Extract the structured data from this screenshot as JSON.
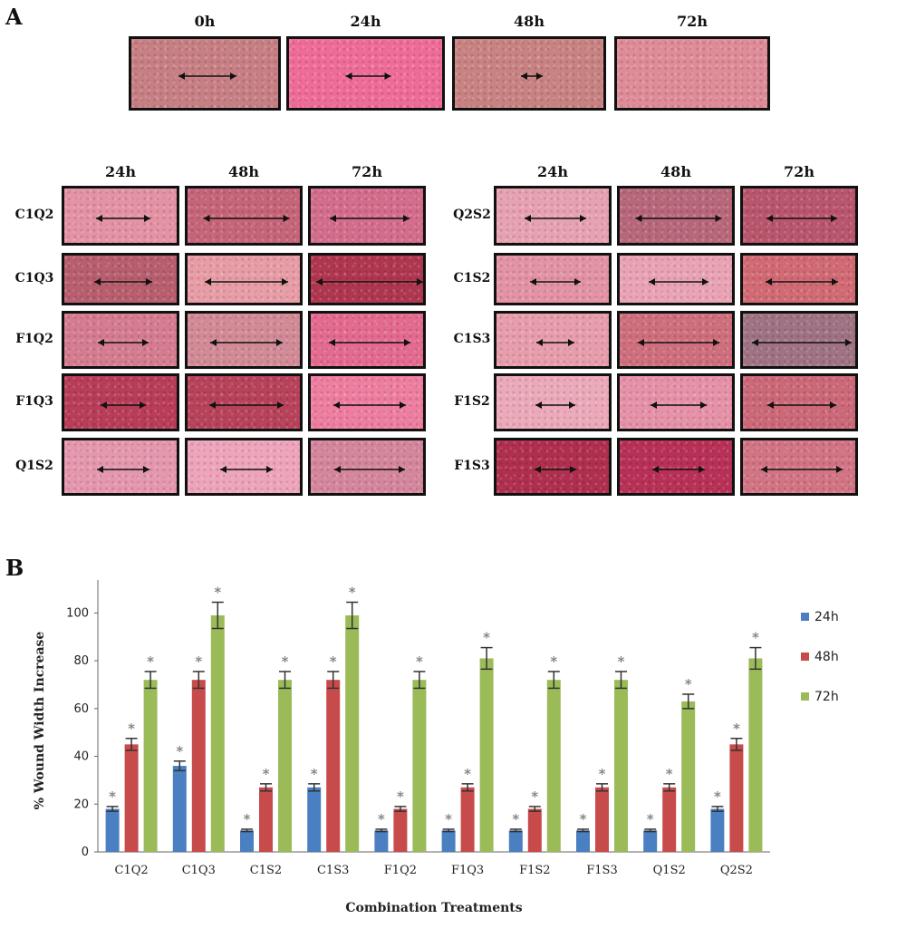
{
  "panelA": {
    "letter": "A",
    "top_row": {
      "timepoints": [
        "0h",
        "24h",
        "48h",
        "72h"
      ],
      "colors": [
        "#c77f84",
        "#f06c98",
        "#c98282",
        "#df8b98"
      ]
    },
    "left_grid": {
      "timepoints": [
        "24h",
        "48h",
        "72h"
      ],
      "rows": [
        {
          "label": "C1Q2",
          "colors": [
            "#e492a4",
            "#c66479",
            "#d46c8c"
          ]
        },
        {
          "label": "C1Q3",
          "colors": [
            "#b85e6e",
            "#e89ca6",
            "#b0364f"
          ]
        },
        {
          "label": "F1Q2",
          "colors": [
            "#d57c90",
            "#d28a96",
            "#e46a90"
          ]
        },
        {
          "label": "F1Q3",
          "colors": [
            "#b93c58",
            "#b8425a",
            "#ee7da0"
          ]
        },
        {
          "label": "Q1S2",
          "colors": [
            "#e597ae",
            "#eea4ba",
            "#d5869c"
          ]
        }
      ]
    },
    "right_grid": {
      "timepoints": [
        "24h",
        "48h",
        "72h"
      ],
      "rows": [
        {
          "label": "Q2S2",
          "colors": [
            "#e7a2b2",
            "#b8677a",
            "#b9556c"
          ]
        },
        {
          "label": "C1S2",
          "colors": [
            "#e393a3",
            "#e9a3b5",
            "#d26a74"
          ]
        },
        {
          "label": "C1S3",
          "colors": [
            "#e79dac",
            "#cf6e7c",
            "#9f7284"
          ]
        },
        {
          "label": "F1S2",
          "colors": [
            "#eca9ba",
            "#e691a8",
            "#cc6878"
          ]
        },
        {
          "label": "F1S3",
          "colors": [
            "#b02f4f",
            "#b93057",
            "#d27484"
          ]
        }
      ]
    }
  },
  "panelB": {
    "letter": "B"
  },
  "chart_data": {
    "type": "bar",
    "title": "",
    "xlabel": "Combination Treatments",
    "ylabel": "% Wound Width Increase",
    "ylim": [
      0,
      110
    ],
    "yticks": [
      "0",
      "20",
      "40",
      "60",
      "80",
      "100"
    ],
    "categories": [
      "C1Q2",
      "C1Q3",
      "C1S2",
      "C1S3",
      "F1Q2",
      "F1Q3",
      "F1S2",
      "F1S3",
      "Q1S2",
      "Q2S2"
    ],
    "series": [
      {
        "name": "24h",
        "color": "#4a7fc1",
        "values": [
          18,
          36,
          9,
          27,
          9,
          9,
          9,
          9,
          9,
          18
        ],
        "errors": [
          1,
          2,
          0.5,
          1.5,
          0.5,
          0.5,
          0.5,
          0.5,
          0.5,
          1
        ]
      },
      {
        "name": "48h",
        "color": "#c84b4b",
        "values": [
          45,
          72,
          27,
          72,
          18,
          27,
          18,
          27,
          27,
          45
        ],
        "errors": [
          2.5,
          3.5,
          1.5,
          3.5,
          1,
          1.5,
          1,
          1.5,
          1.5,
          2.5
        ]
      },
      {
        "name": "72h",
        "color": "#9bbb59",
        "values": [
          72,
          99,
          72,
          99,
          72,
          81,
          72,
          72,
          63,
          81
        ],
        "errors": [
          3.5,
          5.5,
          3.5,
          5.5,
          3.5,
          4.5,
          3.5,
          3.5,
          3,
          4.5
        ]
      }
    ],
    "significance_marker": "*",
    "grid": false,
    "legend_position": "right"
  }
}
